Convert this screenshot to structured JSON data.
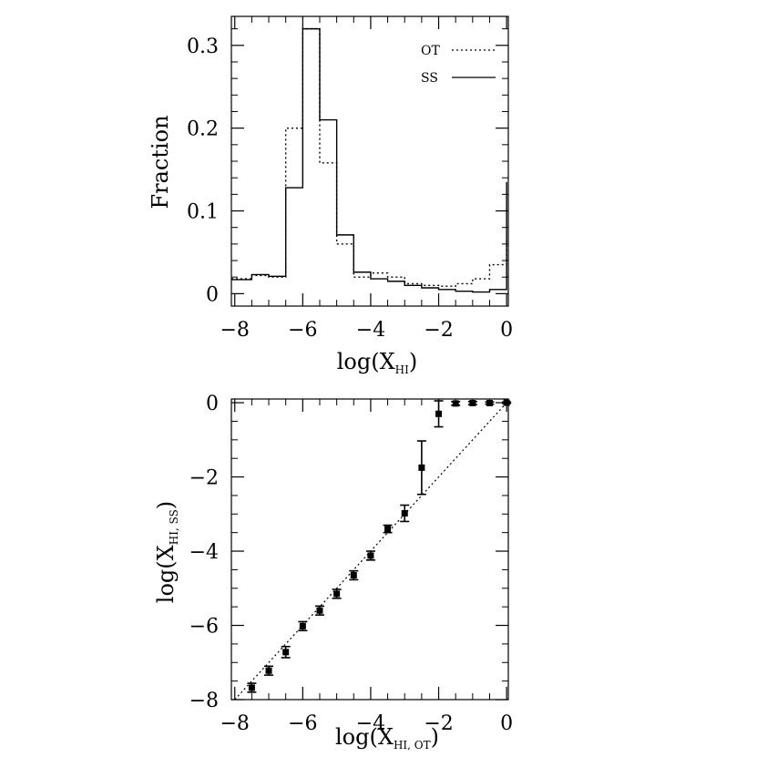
{
  "chart_data": [
    {
      "type": "line",
      "subtype": "histogram",
      "ylabel": "Fraction",
      "xlabel": {
        "main": "log(X",
        "subscript": "HI",
        "close": ")"
      },
      "xlim": [
        -8.1,
        0.05
      ],
      "ylim": [
        -0.015,
        0.335
      ],
      "xticks": [
        -8,
        -6,
        -4,
        -2,
        0
      ],
      "xtick_labels": [
        "−8",
        "−6",
        "−4",
        "−2",
        "0"
      ],
      "yticks": [
        0,
        0.1,
        0.2,
        0.3
      ],
      "ytick_labels": [
        "0",
        "0.1",
        "0.2",
        "0.3"
      ],
      "bin_edges": [
        -8.0,
        -7.5,
        -7.0,
        -6.5,
        -6.0,
        -5.5,
        -5.0,
        -4.5,
        -4.0,
        -3.5,
        -3.0,
        -2.5,
        -2.0,
        -1.5,
        -1.0,
        -0.5,
        0.0
      ],
      "series": [
        {
          "name": "SS",
          "style": "solid",
          "values": [
            0.017,
            0.023,
            0.021,
            0.128,
            0.32,
            0.21,
            0.071,
            0.026,
            0.018,
            0.015,
            0.01,
            0.007,
            0.005,
            0.003,
            0.002,
            0.005
          ]
        },
        {
          "name": "OT",
          "style": "dotted",
          "values": [
            0.018,
            0.022,
            0.02,
            0.2,
            0.32,
            0.158,
            0.06,
            0.02,
            0.025,
            0.02,
            0.012,
            0.01,
            0.009,
            0.012,
            0.018,
            0.035
          ]
        }
      ],
      "last_bin": {
        "SS": 0.135,
        "OT": 0.068
      },
      "legend": [
        {
          "label": "OT",
          "style": "dotted"
        },
        {
          "label": "SS",
          "style": "solid"
        }
      ],
      "legend_position": "top-right"
    },
    {
      "type": "scatter",
      "xlabel": {
        "main": "log(X",
        "subscript": "HI, OT",
        "close": ")"
      },
      "ylabel": {
        "main": "log(X",
        "subscript": "HI, SS",
        "close": ")"
      },
      "xlim": [
        -8.1,
        0.05
      ],
      "ylim": [
        -8.0,
        0.1
      ],
      "xticks": [
        -8,
        -6,
        -4,
        -2,
        0
      ],
      "xtick_labels": [
        "−8",
        "−6",
        "−4",
        "−2",
        "0"
      ],
      "yticks": [
        -8,
        -6,
        -4,
        -2,
        0
      ],
      "ytick_labels": [
        "−8",
        "−6",
        "−4",
        "−2",
        "0"
      ],
      "reference_line": {
        "style": "dotted",
        "from": [
          -8,
          -8
        ],
        "to": [
          0,
          0
        ]
      },
      "points": [
        {
          "x": -7.5,
          "y": -7.68,
          "err": 0.12
        },
        {
          "x": -7.0,
          "y": -7.22,
          "err": 0.12
        },
        {
          "x": -6.5,
          "y": -6.72,
          "err": 0.15
        },
        {
          "x": -6.0,
          "y": -6.02,
          "err": 0.12
        },
        {
          "x": -5.5,
          "y": -5.6,
          "err": 0.12
        },
        {
          "x": -5.0,
          "y": -5.15,
          "err": 0.12
        },
        {
          "x": -4.5,
          "y": -4.65,
          "err": 0.12
        },
        {
          "x": -4.0,
          "y": -4.12,
          "err": 0.12
        },
        {
          "x": -3.5,
          "y": -3.4,
          "err": 0.1
        },
        {
          "x": -3.0,
          "y": -2.98,
          "err": 0.22
        },
        {
          "x": -2.5,
          "y": -1.75,
          "err": 0.72
        },
        {
          "x": -2.0,
          "y": -0.3,
          "err": 0.35
        },
        {
          "x": -1.5,
          "y": -0.02,
          "err": 0.05
        },
        {
          "x": -1.0,
          "y": -0.01,
          "err": 0.04
        },
        {
          "x": -0.5,
          "y": -0.01,
          "err": 0.03
        },
        {
          "x": 0.0,
          "y": 0.0,
          "err": 0.02
        }
      ]
    }
  ]
}
